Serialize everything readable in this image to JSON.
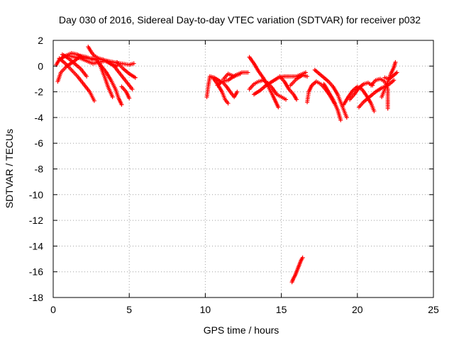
{
  "chart_data": {
    "type": "scatter",
    "title": "Day 030 of 2016, Sidereal Day-to-day VTEC variation (SDTVAR) for receiver p032",
    "xlabel": "GPS time / hours",
    "ylabel": "SDTVAR / TECUs",
    "xlim": [
      0,
      25
    ],
    "ylim": [
      -18,
      2
    ],
    "xticks": [
      0,
      5,
      10,
      15,
      20,
      25
    ],
    "yticks": [
      2,
      0,
      -2,
      -4,
      -6,
      -8,
      -10,
      -12,
      -14,
      -16,
      -18
    ],
    "grid": true,
    "marker": "plus",
    "color": "#ff0000",
    "tracks": [
      [
        [
          0.2,
          0.1
        ],
        [
          0.4,
          0.5
        ],
        [
          0.8,
          0.8
        ],
        [
          1.2,
          1.0
        ],
        [
          1.6,
          0.9
        ],
        [
          2.0,
          0.6
        ],
        [
          2.6,
          0.6
        ],
        [
          3.2,
          0.5
        ],
        [
          4.0,
          0.3
        ],
        [
          5.0,
          0.1
        ],
        [
          5.3,
          0.2
        ]
      ],
      [
        [
          0.3,
          -1.2
        ],
        [
          0.5,
          -0.5
        ],
        [
          0.9,
          0.0
        ],
        [
          1.4,
          0.4
        ],
        [
          1.8,
          0.8
        ],
        [
          2.2,
          0.7
        ],
        [
          2.6,
          0.5
        ]
      ],
      [
        [
          0.4,
          0.6
        ],
        [
          0.8,
          0.2
        ],
        [
          1.2,
          -0.3
        ],
        [
          1.6,
          -0.8
        ],
        [
          2.0,
          -1.4
        ],
        [
          2.4,
          -2.0
        ],
        [
          2.7,
          -2.7
        ]
      ],
      [
        [
          0.6,
          0.9
        ],
        [
          1.0,
          0.6
        ],
        [
          1.4,
          0.2
        ],
        [
          1.8,
          -0.2
        ],
        [
          2.2,
          -0.8
        ]
      ],
      [
        [
          1.0,
          0.8
        ],
        [
          1.4,
          0.7
        ],
        [
          1.8,
          0.6
        ],
        [
          2.2,
          0.4
        ],
        [
          2.6,
          0.2
        ],
        [
          3.0,
          0.3
        ],
        [
          3.4,
          0.4
        ],
        [
          3.8,
          0.2
        ],
        [
          4.2,
          0.0
        ]
      ],
      [
        [
          2.3,
          1.5
        ],
        [
          2.5,
          1.1
        ],
        [
          2.7,
          0.8
        ],
        [
          3.0,
          0.6
        ],
        [
          3.3,
          0.5
        ]
      ],
      [
        [
          2.8,
          0.5
        ],
        [
          3.1,
          0.1
        ],
        [
          3.5,
          -0.5
        ],
        [
          3.8,
          -1.1
        ],
        [
          4.1,
          -1.8
        ],
        [
          4.3,
          -2.5
        ],
        [
          4.5,
          -3.0
        ]
      ],
      [
        [
          3.0,
          0.3
        ],
        [
          3.2,
          -0.3
        ],
        [
          3.4,
          -0.9
        ],
        [
          3.6,
          -1.6
        ],
        [
          3.9,
          -2.4
        ]
      ],
      [
        [
          3.5,
          0.4
        ],
        [
          4.0,
          0.0
        ],
        [
          4.4,
          -0.6
        ],
        [
          4.8,
          -1.2
        ],
        [
          5.2,
          -1.8
        ]
      ],
      [
        [
          4.2,
          0.3
        ],
        [
          4.6,
          -0.2
        ],
        [
          5.0,
          -0.6
        ],
        [
          5.4,
          -0.9
        ]
      ],
      [
        [
          4.5,
          -1.6
        ],
        [
          4.8,
          -2.0
        ],
        [
          5.0,
          -2.5
        ]
      ],
      [
        [
          10.1,
          -2.4
        ],
        [
          10.2,
          -1.5
        ],
        [
          10.3,
          -0.8
        ],
        [
          10.6,
          -0.9
        ],
        [
          11.0,
          -1.2
        ],
        [
          11.5,
          -1.1
        ],
        [
          12.0,
          -0.7
        ],
        [
          12.4,
          -0.5
        ],
        [
          12.8,
          -0.5
        ]
      ],
      [
        [
          10.5,
          -0.9
        ],
        [
          10.8,
          -1.4
        ],
        [
          11.1,
          -2.0
        ],
        [
          11.3,
          -2.6
        ],
        [
          11.5,
          -2.9
        ]
      ],
      [
        [
          10.8,
          -1.5
        ],
        [
          11.1,
          -1.2
        ],
        [
          11.4,
          -1.6
        ],
        [
          11.7,
          -2.1
        ],
        [
          11.9,
          -2.4
        ],
        [
          12.1,
          -2.0
        ]
      ],
      [
        [
          11.2,
          -1.0
        ],
        [
          11.5,
          -0.6
        ],
        [
          11.9,
          -0.8
        ],
        [
          12.3,
          -0.6
        ]
      ],
      [
        [
          12.9,
          0.7
        ],
        [
          13.2,
          0.2
        ],
        [
          13.5,
          -0.4
        ],
        [
          13.8,
          -0.9
        ],
        [
          14.1,
          -1.5
        ],
        [
          14.4,
          -2.2
        ],
        [
          14.6,
          -2.7
        ],
        [
          14.8,
          -3.2
        ]
      ],
      [
        [
          12.9,
          -1.8
        ],
        [
          13.2,
          -1.4
        ],
        [
          13.5,
          -1.2
        ],
        [
          13.8,
          -1.1
        ],
        [
          14.1,
          -1.3
        ],
        [
          14.4,
          -1.7
        ],
        [
          14.7,
          -2.2
        ],
        [
          15.0,
          -2.4
        ],
        [
          15.3,
          -2.6
        ]
      ],
      [
        [
          13.2,
          -2.2
        ],
        [
          13.6,
          -1.9
        ],
        [
          14.0,
          -1.5
        ],
        [
          14.4,
          -1.2
        ],
        [
          14.8,
          -0.9
        ],
        [
          15.2,
          -0.8
        ],
        [
          15.6,
          -0.8
        ],
        [
          16.0,
          -0.8
        ],
        [
          16.4,
          -0.6
        ],
        [
          16.6,
          -0.5
        ]
      ],
      [
        [
          14.9,
          -0.8
        ],
        [
          15.2,
          -1.2
        ],
        [
          15.5,
          -1.8
        ],
        [
          15.8,
          -2.2
        ],
        [
          16.0,
          -2.6
        ]
      ],
      [
        [
          15.6,
          -1.5
        ],
        [
          16.0,
          -1.0
        ],
        [
          16.4,
          -0.7
        ],
        [
          16.7,
          -0.8
        ]
      ],
      [
        [
          16.7,
          -2.8
        ],
        [
          16.8,
          -2.0
        ],
        [
          17.0,
          -1.5
        ],
        [
          17.3,
          -1.2
        ],
        [
          17.6,
          -1.4
        ],
        [
          17.9,
          -1.8
        ],
        [
          18.2,
          -2.3
        ],
        [
          18.5,
          -2.9
        ]
      ],
      [
        [
          17.2,
          -0.3
        ],
        [
          17.5,
          -0.6
        ],
        [
          17.8,
          -0.9
        ],
        [
          18.1,
          -1.2
        ],
        [
          18.4,
          -1.6
        ],
        [
          18.7,
          -2.2
        ],
        [
          18.9,
          -2.8
        ],
        [
          19.1,
          -3.4
        ],
        [
          19.3,
          -4.0
        ]
      ],
      [
        [
          17.8,
          -1.4
        ],
        [
          18.1,
          -2.0
        ],
        [
          18.4,
          -2.6
        ],
        [
          18.7,
          -3.4
        ],
        [
          18.9,
          -4.2
        ]
      ],
      [
        [
          19.1,
          -3.0
        ],
        [
          19.4,
          -2.4
        ],
        [
          19.7,
          -1.9
        ],
        [
          20.0,
          -1.6
        ],
        [
          20.3,
          -1.8
        ],
        [
          20.6,
          -2.3
        ],
        [
          20.9,
          -2.9
        ],
        [
          21.1,
          -3.5
        ]
      ],
      [
        [
          19.5,
          -2.6
        ],
        [
          19.8,
          -2.2
        ],
        [
          20.1,
          -1.7
        ],
        [
          20.4,
          -1.4
        ],
        [
          20.7,
          -1.3
        ],
        [
          21.0,
          -1.5
        ]
      ],
      [
        [
          20.1,
          -3.2
        ],
        [
          20.4,
          -2.8
        ],
        [
          20.8,
          -2.4
        ],
        [
          21.2,
          -2.0
        ],
        [
          21.6,
          -1.7
        ],
        [
          22.0,
          -1.5
        ],
        [
          22.4,
          -1.1
        ]
      ],
      [
        [
          20.9,
          -1.5
        ],
        [
          21.2,
          -1.1
        ],
        [
          21.5,
          -1.0
        ],
        [
          21.8,
          -1.2
        ],
        [
          22.0,
          -1.8
        ],
        [
          22.0,
          -2.8
        ],
        [
          22.0,
          -3.3
        ]
      ],
      [
        [
          21.6,
          -2.4
        ],
        [
          21.8,
          -1.8
        ],
        [
          22.0,
          -1.2
        ],
        [
          22.2,
          -0.6
        ],
        [
          22.4,
          -0.1
        ],
        [
          22.5,
          0.3
        ]
      ],
      [
        [
          21.8,
          -0.9
        ],
        [
          22.1,
          -1.0
        ],
        [
          22.4,
          -0.7
        ],
        [
          22.6,
          -0.5
        ]
      ],
      [
        [
          15.7,
          -16.8
        ],
        [
          15.8,
          -16.5
        ],
        [
          15.9,
          -16.3
        ],
        [
          16.0,
          -16.0
        ],
        [
          16.1,
          -15.7
        ],
        [
          16.2,
          -15.4
        ],
        [
          16.3,
          -15.1
        ],
        [
          16.4,
          -14.9
        ]
      ]
    ]
  }
}
